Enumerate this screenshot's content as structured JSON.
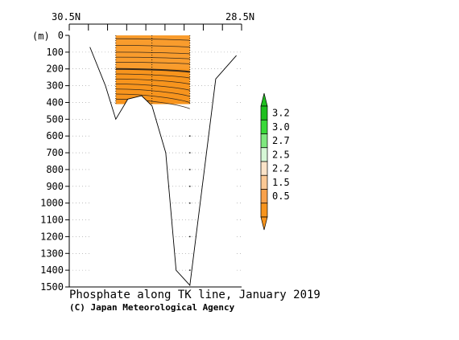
{
  "chart_data": {
    "type": "section-contour",
    "title": "Phosphate along TK line, January 2019",
    "credit": "(C) Japan Meteorological Agency",
    "xlabel_left": "30.5N",
    "xlabel_right": "28.5N",
    "ylabel": "(m)",
    "ylim": [
      0,
      1500
    ],
    "y_ticks": [
      "0",
      "100",
      "200",
      "300",
      "400",
      "500",
      "600",
      "700",
      "800",
      "900",
      "1000",
      "1100",
      "1200",
      "1300",
      "1400",
      "1500"
    ],
    "grid": "dotted",
    "x_tick_count": 10,
    "stations_x": [
      0.27,
      0.48,
      0.7
    ],
    "sample_depths": [
      600,
      700,
      800,
      900,
      1000,
      1200,
      1400
    ],
    "bottom_profile": [
      [
        0.12,
        70
      ],
      [
        0.21,
        300
      ],
      [
        0.27,
        500
      ],
      [
        0.34,
        380
      ],
      [
        0.42,
        360
      ],
      [
        0.48,
        420
      ],
      [
        0.56,
        700
      ],
      [
        0.62,
        1400
      ],
      [
        0.7,
        1490
      ],
      [
        0.85,
        260
      ],
      [
        0.97,
        120
      ]
    ],
    "filled_region": {
      "x_start": 0.27,
      "x_end": 0.7,
      "depth_top": 0,
      "depth_bottom": 410
    },
    "contour_depths_at_left": [
      20,
      60,
      100,
      130,
      160,
      200,
      230,
      260,
      290,
      320,
      350,
      380
    ],
    "bold_contour_depth_at_left": 200,
    "colorbar": {
      "labels": [
        "3.2",
        "3.0",
        "2.7",
        "2.5",
        "2.2",
        "1.5",
        "0.5"
      ],
      "colors": [
        "#1fbf1f",
        "#39d939",
        "#7fe87f",
        "#d6f7d6",
        "#fbe3c8",
        "#fbc894",
        "#f9a14b",
        "#f7941d"
      ]
    },
    "fill_color": "#f7941d",
    "upper_fill_color": "#fba33a"
  }
}
